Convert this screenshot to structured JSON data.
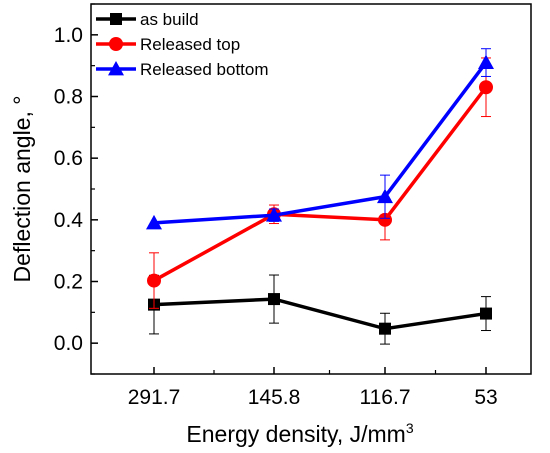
{
  "chart_data": {
    "type": "line",
    "title": "",
    "xlabel": "Energy density, J/mm",
    "xlabel_superscript": "3",
    "ylabel": "Deflection angle, °",
    "categories": [
      "291.7",
      "145.8",
      "116.7",
      "53"
    ],
    "ylim": [
      -0.1,
      1.1
    ],
    "yticks": [
      "0.0",
      "0.2",
      "0.4",
      "0.6",
      "0.8",
      "1.0"
    ],
    "ytick_values": [
      0.0,
      0.2,
      0.4,
      0.6,
      0.8,
      1.0
    ],
    "grid": false,
    "legend_position": "top-left",
    "series": [
      {
        "name": "as build",
        "color": "#000000",
        "marker": "square",
        "values": [
          0.125,
          0.143,
          0.047,
          0.096
        ],
        "errors": [
          0.095,
          0.078,
          0.05,
          0.055
        ]
      },
      {
        "name": "Released top",
        "color": "#ff0000",
        "marker": "circle",
        "values": [
          0.203,
          0.418,
          0.4,
          0.83
        ],
        "errors": [
          0.09,
          0.03,
          0.065,
          0.095
        ]
      },
      {
        "name": "Released bottom",
        "color": "#0000ff",
        "marker": "triangle",
        "values": [
          0.39,
          0.415,
          0.475,
          0.91
        ],
        "errors": [
          0.0,
          0.02,
          0.07,
          0.045
        ]
      }
    ]
  }
}
